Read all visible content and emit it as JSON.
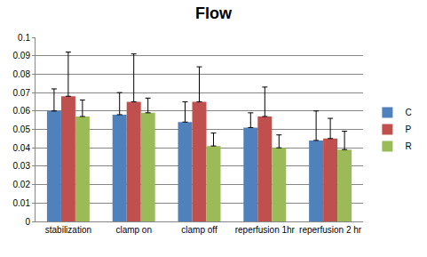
{
  "chart_data": {
    "type": "bar",
    "title": "Flow",
    "categories": [
      "stabilization",
      "clamp on",
      "clamp off",
      "reperfusion 1hr",
      "reperfusion 2 hr"
    ],
    "series": [
      {
        "name": "C",
        "color": "#4f81bd",
        "values": [
          0.06,
          0.058,
          0.054,
          0.051,
          0.044
        ],
        "errors": [
          0.012,
          0.012,
          0.011,
          0.008,
          0.016
        ]
      },
      {
        "name": "P",
        "color": "#c0504d",
        "values": [
          0.068,
          0.065,
          0.065,
          0.057,
          0.045
        ],
        "errors": [
          0.024,
          0.026,
          0.019,
          0.016,
          0.011
        ]
      },
      {
        "name": "R",
        "color": "#9bbb59",
        "values": [
          0.057,
          0.059,
          0.041,
          0.04,
          0.039
        ],
        "errors": [
          0.009,
          0.008,
          0.007,
          0.007,
          0.01
        ]
      }
    ],
    "ylim": [
      0,
      0.1
    ],
    "yticks": [
      0,
      0.01,
      0.02,
      0.03,
      0.04,
      0.05,
      0.06,
      0.07,
      0.08,
      0.09,
      0.1
    ],
    "grid": true,
    "legend": "right"
  }
}
